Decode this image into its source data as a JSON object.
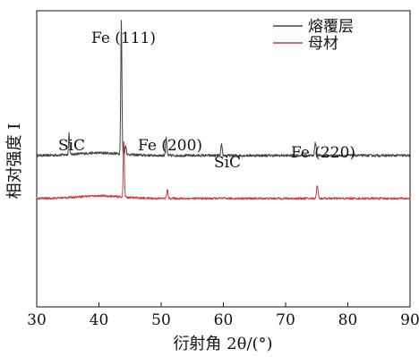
{
  "chart_data": {
    "type": "line",
    "title": "",
    "xlabel": "衍射角 2θ/(°)",
    "ylabel": "相对强度 I",
    "xlim": [
      30,
      90
    ],
    "x_ticks": [
      30,
      40,
      50,
      60,
      70,
      80,
      90
    ],
    "y_ticks": [],
    "grid": false,
    "legend_position": "top-right",
    "series": [
      {
        "name": "熔覆层",
        "color": "#444444",
        "baseline": 0.13,
        "noise": 0.006,
        "peaks": [
          {
            "x": 35.2,
            "height": 0.1,
            "width": 0.12
          },
          {
            "x": 43.6,
            "height": 0.62,
            "width": 0.13
          },
          {
            "x": 44.3,
            "height": 0.04,
            "width": 0.15
          },
          {
            "x": 50.8,
            "height": 0.08,
            "width": 0.15
          },
          {
            "x": 59.7,
            "height": 0.05,
            "width": 0.15
          },
          {
            "x": 74.8,
            "height": 0.06,
            "width": 0.18
          }
        ]
      },
      {
        "name": "母材",
        "color": "#d03838",
        "baseline": -0.07,
        "noise": 0.005,
        "peaks": [
          {
            "x": 44.0,
            "height": 0.26,
            "width": 0.13
          },
          {
            "x": 51.0,
            "height": 0.04,
            "width": 0.15
          },
          {
            "x": 75.1,
            "height": 0.06,
            "width": 0.18
          }
        ]
      }
    ],
    "annotations": [
      {
        "text": "Fe (111)",
        "x": 43.6
      },
      {
        "text": "SiC",
        "x": 35.3
      },
      {
        "text": "Fe (200)",
        "x": 50.8
      },
      {
        "text": "SiC",
        "x": 59.7
      },
      {
        "text": "Fe (220)",
        "x": 74.8
      }
    ]
  }
}
